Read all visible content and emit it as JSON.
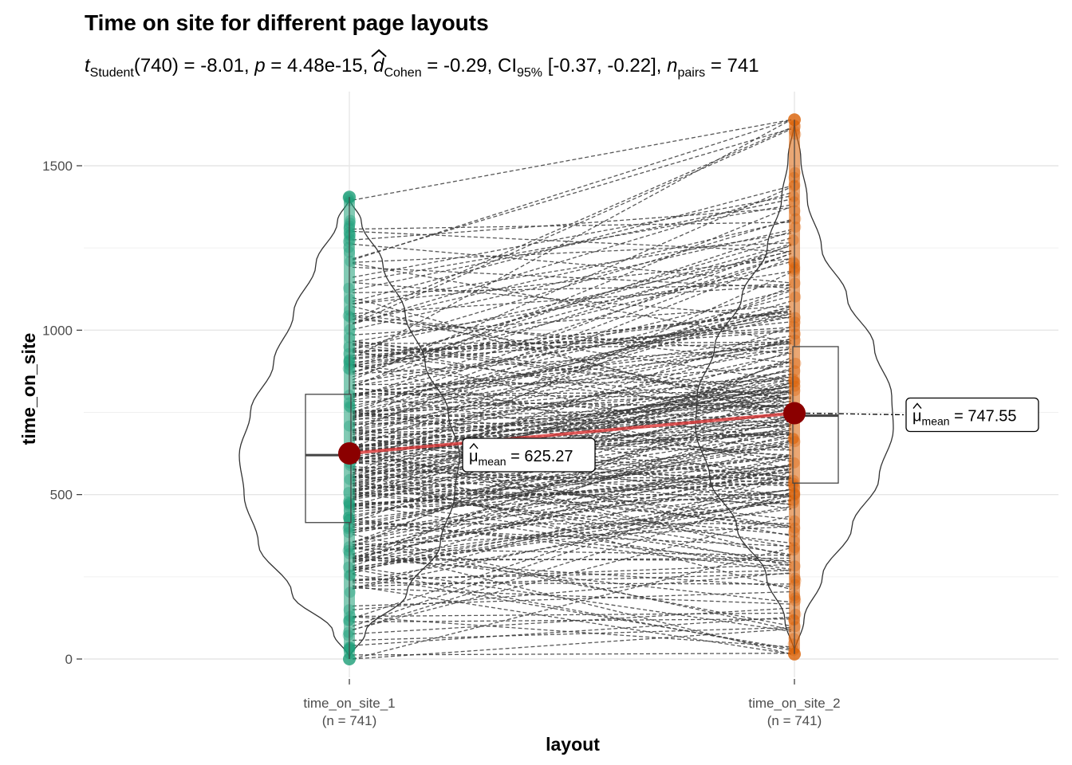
{
  "chart_data": {
    "type": "paired-violin-box",
    "title": "Time on site for different page layouts",
    "subtitle": {
      "stat_symbol": "t",
      "stat_sub": "Student",
      "df": "(740)",
      "stat_value": "-8.01",
      "p_symbol": "p",
      "p_value": "4.48e-15",
      "effect_symbol": "d",
      "effect_sub": "Cohen",
      "effect_value": "-0.29",
      "ci_symbol": "CI",
      "ci_sub": "95%",
      "ci_value": "[-0.37, -0.22]",
      "n_symbol": "n",
      "n_sub": "pairs",
      "n_value": "741"
    },
    "xlabel": "layout",
    "ylabel": "time_on_site",
    "ylim": [
      -40,
      1670
    ],
    "yticks": [
      0,
      500,
      1000,
      1500
    ],
    "ytick_labels": [
      "0",
      "500",
      "1000",
      "1500"
    ],
    "grid": true,
    "groups": [
      {
        "name": "time_on_site_1",
        "n_label": "(n = 741)",
        "color": "#1B9E77",
        "mean": 625.27,
        "mean_label": "625.27",
        "box": {
          "q1": 415,
          "median": 620,
          "q3": 805,
          "whisker_low": 0,
          "whisker_high": 1405
        },
        "min": 0,
        "max": 1405
      },
      {
        "name": "time_on_site_2",
        "n_label": "(n = 741)",
        "color": "#D95F02",
        "mean": 747.55,
        "mean_label": "747.55",
        "box": {
          "q1": 535,
          "median": 740,
          "q3": 950,
          "whisker_low": 15,
          "whisker_high": 1640
        },
        "min": 15,
        "max": 1640
      }
    ],
    "mean_symbol": "μ",
    "mean_sub": "mean",
    "mean_line_color": "#8B0000",
    "paired_line_color": "#3a3a3a"
  }
}
